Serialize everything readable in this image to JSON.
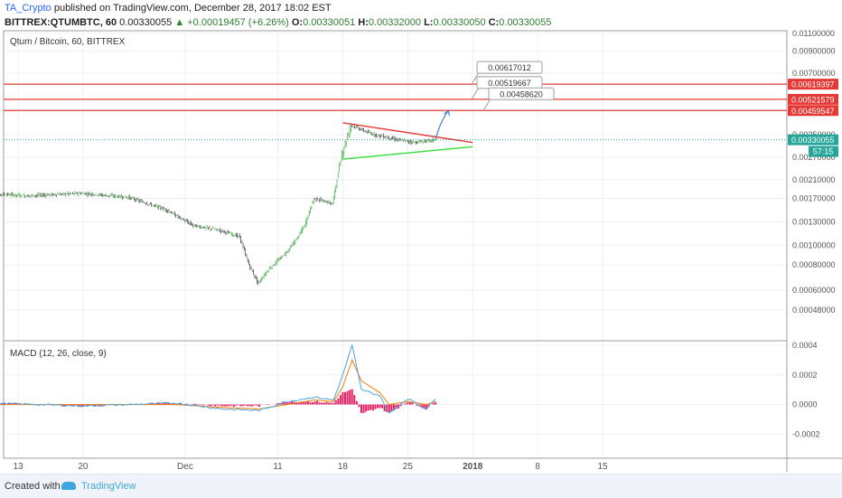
{
  "header": {
    "author": "TA_Crypto",
    "published_text": "published on TradingView.com, December 28, 2017 18:02 EST",
    "symbol": "BITTREX:QTUMBTC, 60",
    "last_price": "0.00330055",
    "change": "▲ +0.00019457 (+6.26%)",
    "ohlc": [
      {
        "label": "O:",
        "value": "0.00330051"
      },
      {
        "label": "H:",
        "value": "0.00332000"
      },
      {
        "label": "L:",
        "value": "0.00330050"
      },
      {
        "label": "C:",
        "value": "0.00330055"
      }
    ]
  },
  "colors": {
    "candle_up": "#4caf50",
    "candle_down": "#4d4d4d",
    "resistance": "#e53935",
    "support_line": "#33dd33",
    "arrow": "#4a7fc1",
    "price_tag": "#26a69a",
    "macd_line": "#4aa3df",
    "signal_line": "#f57c00",
    "histogram": "#e91e63"
  },
  "chart_data": [
    {
      "type": "line",
      "title": "Qtum / Bitcoin, 60, BITTREX",
      "x_ticks": [
        "13",
        "20",
        "Dec",
        "11",
        "18",
        "25",
        "2018",
        "8",
        "15"
      ],
      "y_ticks": [
        "0.01100000",
        "0.00900000",
        "0.00700000",
        "0.00350000",
        "0.00270000",
        "0.00210000",
        "0.00170000",
        "0.00130000",
        "0.00100000",
        "0.00080000",
        "0.00060000",
        "0.00048000"
      ],
      "ylabel_scale": "log",
      "price_path_x": [
        "Nov 10",
        "Nov 14",
        "Nov 20",
        "Nov 25",
        "Nov 29",
        "Dec 2",
        "Dec 5",
        "Dec 7",
        "Dec 8",
        "Dec 9",
        "Dec 10",
        "Dec 12",
        "Dec 13",
        "Dec 14",
        "Dec 15",
        "Dec 17",
        "Dec 18",
        "Dec 19",
        "Dec 21",
        "Dec 24",
        "Dec 26",
        "Dec 28"
      ],
      "price_path_y": [
        0.0018,
        0.00175,
        0.0018,
        0.00172,
        0.0015,
        0.00125,
        0.00118,
        0.0011,
        0.0008,
        0.00065,
        0.00075,
        0.00092,
        0.00105,
        0.00125,
        0.0017,
        0.0016,
        0.0028,
        0.0039,
        0.00355,
        0.0033,
        0.0032,
        0.0033
      ],
      "horizontal_levels": [
        {
          "value": 0.00619397,
          "label": "0.00619397"
        },
        {
          "value": 0.00521579,
          "label": "0.00521579"
        },
        {
          "value": 0.00459547,
          "label": "0.00459547"
        }
      ],
      "level_callouts": [
        "0.00617012",
        "0.00519667",
        "0.00458620"
      ],
      "current_price_label": "0.00330055",
      "countdown_label": "57:15",
      "triangle": {
        "upper": {
          "from": [
            "Dec 18",
            0.004
          ],
          "to": [
            "Jan 1",
            0.0032
          ]
        },
        "lower": {
          "from": [
            "Dec 18",
            0.00265
          ],
          "to": [
            "Jan 1",
            0.00305
          ]
        }
      }
    },
    {
      "type": "line",
      "title": "MACD (12, 26, close, 9)",
      "y_ticks": [
        "0.0004",
        "0.0002",
        "0.0000",
        "-0.0002"
      ],
      "ylim": [
        -0.00032,
        0.0004
      ],
      "macd_x": [
        "Nov 10",
        "Nov 20",
        "Nov 30",
        "Dec 5",
        "Dec 9",
        "Dec 12",
        "Dec 15",
        "Dec 17",
        "Dec 18",
        "Dec 19",
        "Dec 20",
        "Dec 22",
        "Dec 23",
        "Dec 25",
        "Dec 27",
        "Dec 28"
      ],
      "macd": [
        1e-05,
        -1e-05,
        1e-05,
        -3e-05,
        -4e-05,
        2e-05,
        5e-05,
        3e-05,
        0.0002,
        0.0004,
        0.0001,
        6e-05,
        -6e-05,
        4e-05,
        -3e-05,
        4e-05
      ],
      "signal": [
        0.0,
        0.0,
        0.0,
        -2e-05,
        -3e-05,
        0.0,
        3e-05,
        2e-05,
        0.00012,
        0.0003,
        0.00016,
        8e-05,
        0.0,
        2e-05,
        0.0,
        2e-05
      ]
    }
  ],
  "footer": {
    "created_with": "Created with",
    "brand": "TradingView"
  }
}
